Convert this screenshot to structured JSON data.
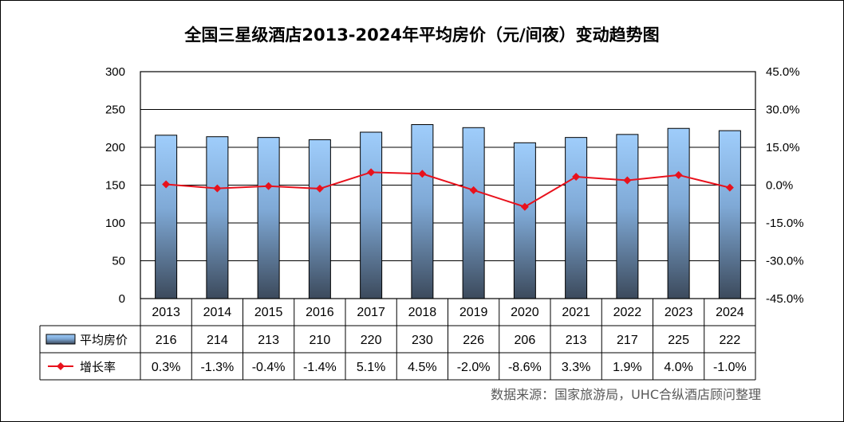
{
  "chart_data": {
    "type": "bar",
    "title": "全国三星级酒店2013-2024年平均房价（元/间夜）变动趋势图",
    "categories": [
      "2013",
      "2014",
      "2015",
      "2016",
      "2017",
      "2018",
      "2019",
      "2020",
      "2021",
      "2022",
      "2023",
      "2024"
    ],
    "series": [
      {
        "name": "平均房价",
        "type": "bar",
        "axis": "left",
        "values": [
          216,
          214,
          213,
          210,
          220,
          230,
          226,
          206,
          213,
          217,
          225,
          222
        ],
        "labels": [
          "216",
          "214",
          "213",
          "210",
          "220",
          "230",
          "226",
          "206",
          "213",
          "217",
          "225",
          "222"
        ]
      },
      {
        "name": "增长率",
        "type": "line",
        "axis": "right",
        "values": [
          0.3,
          -1.3,
          -0.4,
          -1.4,
          5.1,
          4.5,
          -2.0,
          -8.6,
          3.3,
          1.9,
          4.0,
          -1.0
        ],
        "labels": [
          "0.3%",
          "-1.3%",
          "-0.4%",
          "-1.4%",
          "5.1%",
          "4.5%",
          "-2.0%",
          "-8.6%",
          "3.3%",
          "1.9%",
          "4.0%",
          "-1.0%"
        ]
      }
    ],
    "y_left": {
      "min": 0,
      "max": 300,
      "ticks": [
        "0",
        "50",
        "100",
        "150",
        "200",
        "250",
        "300"
      ]
    },
    "y_right": {
      "min": -45,
      "max": 45,
      "ticks": [
        "-45.0%",
        "-30.0%",
        "-15.0%",
        "0.0%",
        "15.0%",
        "30.0%",
        "45.0%"
      ]
    },
    "grid": true,
    "data_table": true
  },
  "source": "数据来源：国家旅游局，UHC合纵酒店顾问整理",
  "colors": {
    "bar_top": "#9fcdfb",
    "bar_bottom": "#3c4a5c",
    "line": "#e8111c",
    "grid": "#000000"
  }
}
